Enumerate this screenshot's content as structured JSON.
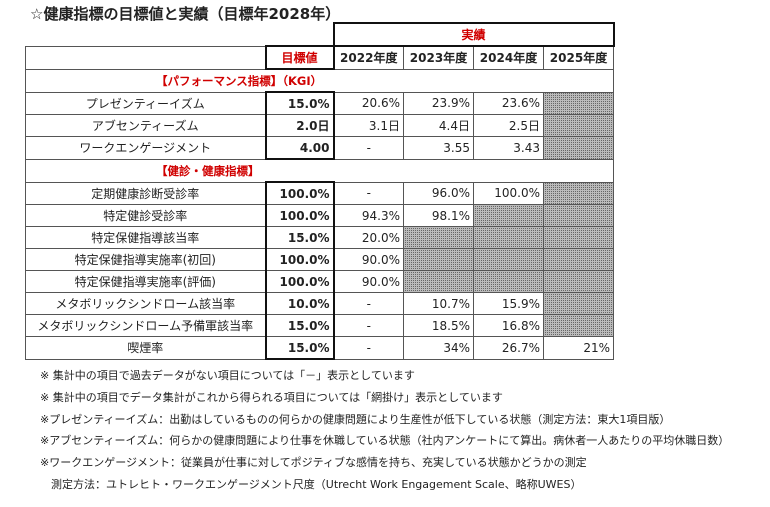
{
  "title": "☆健康指標の目標値と実績（目標年2028年）",
  "header": {
    "actual": "実績",
    "target": "目標値",
    "years": [
      "2022年度",
      "2023年度",
      "2024年度",
      "2025年度"
    ]
  },
  "sections": [
    {
      "label": "【パフォーマンス指標】（KGI）",
      "rows": [
        {
          "name": "プレゼンティーイズム",
          "target": "15.0%",
          "values": [
            "20.6%",
            "23.9%",
            "23.6%",
            ""
          ],
          "shaded": [
            false,
            false,
            false,
            true
          ]
        },
        {
          "name": "アブセンティーズム",
          "target": "2.0日",
          "values": [
            "3.1日",
            "4.4日",
            "2.5日",
            ""
          ],
          "shaded": [
            false,
            false,
            false,
            true
          ]
        },
        {
          "name": "ワークエンゲージメント",
          "target": "4.00",
          "values": [
            "-",
            "3.55",
            "3.43",
            ""
          ],
          "shaded": [
            false,
            false,
            false,
            true
          ]
        }
      ]
    },
    {
      "label": "【健診・健康指標】",
      "rows": [
        {
          "name": "定期健康診断受診率",
          "target": "100.0%",
          "values": [
            "-",
            "96.0%",
            "100.0%",
            ""
          ],
          "shaded": [
            false,
            false,
            false,
            true
          ]
        },
        {
          "name": "特定健診受診率",
          "target": "100.0%",
          "values": [
            "94.3%",
            "98.1%",
            "",
            ""
          ],
          "shaded": [
            false,
            false,
            true,
            true
          ]
        },
        {
          "name": "特定保健指導該当率",
          "target": "15.0%",
          "values": [
            "20.0%",
            "",
            "",
            ""
          ],
          "shaded": [
            false,
            true,
            true,
            true
          ]
        },
        {
          "name": "特定保健指導実施率(初回)",
          "target": "100.0%",
          "values": [
            "90.0%",
            "",
            "",
            ""
          ],
          "shaded": [
            false,
            true,
            true,
            true
          ]
        },
        {
          "name": "特定保健指導実施率(評価)",
          "target": "100.0%",
          "values": [
            "90.0%",
            "",
            "",
            ""
          ],
          "shaded": [
            false,
            true,
            true,
            true
          ]
        },
        {
          "name": "メタボリックシンドローム該当率",
          "target": "10.0%",
          "values": [
            "-",
            "10.7%",
            "15.9%",
            ""
          ],
          "shaded": [
            false,
            false,
            false,
            true
          ]
        },
        {
          "name": "メタボリックシンドローム予備軍該当率",
          "target": "15.0%",
          "values": [
            "-",
            "18.5%",
            "16.8%",
            ""
          ],
          "shaded": [
            false,
            false,
            false,
            true
          ]
        },
        {
          "name": "喫煙率",
          "target": "15.0%",
          "values": [
            "-",
            "34%",
            "26.7%",
            "21%"
          ],
          "shaded": [
            false,
            false,
            false,
            false
          ]
        }
      ]
    }
  ],
  "notes": [
    "※ 集計中の項目で過去データがない項目については「－」表示としています",
    "※ 集計中の項目でデータ集計がこれから得られる項目については「網掛け」表示としています",
    "※プレゼンティーイズム：出勤はしているものの何らかの健康問題により生産性が低下している状態（測定方法：東大1項目版）",
    "※アブセンティーイズム：何らかの健康問題により仕事を休職している状態（社内アンケートにて算出。病休者一人あたりの平均休職日数）",
    "※ワークエンゲージメント：従業員が仕事に対してポジティブな感情を持ち、充実している状態かどうかの測定",
    "　測定方法：ユトレヒト・ワークエンゲージメント尺度（Utrecht Work Engagement Scale、略称UWES）"
  ]
}
